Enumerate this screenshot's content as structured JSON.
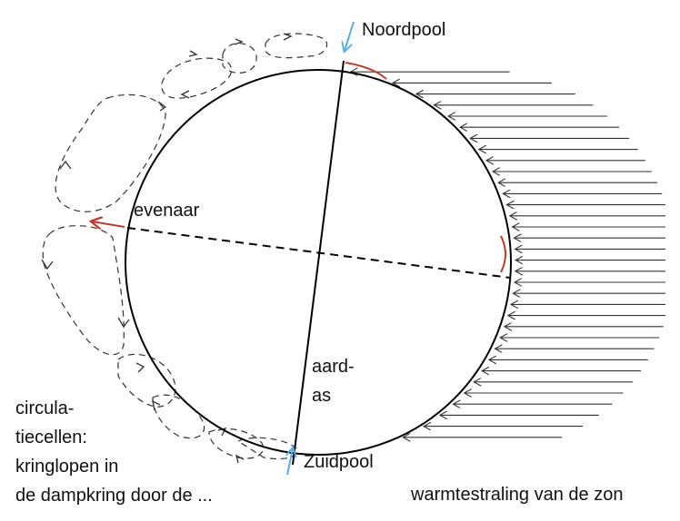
{
  "labels": {
    "north_pole": "Noordpool",
    "south_pole": "Zuidpool",
    "equator": "evenaar",
    "axis_line1": "aard-",
    "axis_line2": "as",
    "sun_radiation": "warmtestraling van de zon",
    "cells_line1": "circula-",
    "cells_line2": "tiecellen:",
    "cells_line3": "kringlopen in",
    "cells_line4": "de dampkring door de ..."
  },
  "colors": {
    "outline": "#000000",
    "radiation_arrows": "#333333",
    "circulation_cells": "#333333",
    "pole_arrows": "#5aaee6",
    "red_marks": "#c0392b"
  }
}
